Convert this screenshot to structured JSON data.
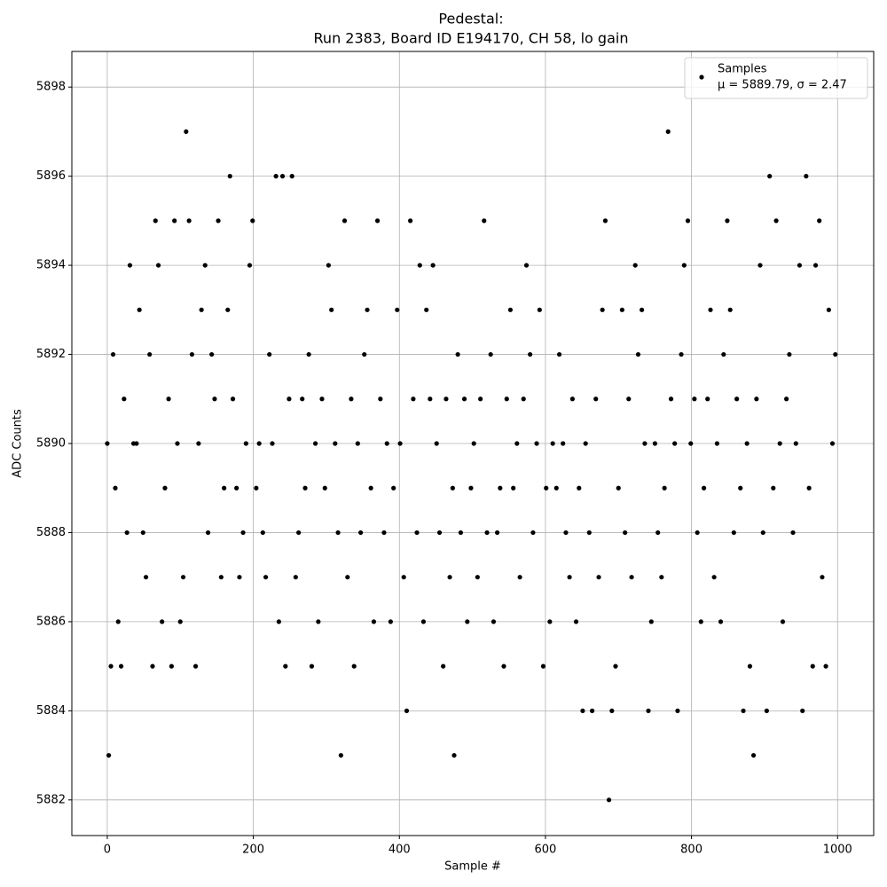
{
  "chart_data": {
    "type": "scatter",
    "title": "Pedestal:",
    "subtitle": "Run 2383, Board ID E194170, CH 58, lo gain",
    "x_label": "Sample #",
    "y_label": "ADC Counts",
    "stats_label": "μ = 5889.79, σ = 2.47",
    "xlim": [
      -48.5,
      1049.5
    ],
    "ylim": [
      5881.2,
      5898.8
    ],
    "xticks": [
      0,
      200,
      400,
      600,
      800,
      1000
    ],
    "yticks": [
      5882,
      5884,
      5886,
      5888,
      5890,
      5892,
      5894,
      5896,
      5898
    ],
    "grid": true,
    "legend_position": "upper right",
    "x": [
      0,
      2,
      5,
      8,
      11,
      15,
      19,
      23,
      27,
      31,
      36,
      40,
      44,
      49,
      53,
      58,
      62,
      66,
      70,
      75,
      79,
      84,
      88,
      92,
      96,
      100,
      104,
      108,
      112,
      116,
      121,
      125,
      129,
      134,
      138,
      143,
      147,
      152,
      156,
      160,
      165,
      168,
      172,
      177,
      181,
      186,
      190,
      195,
      199,
      204,
      208,
      213,
      217,
      222,
      226,
      231,
      235,
      240,
      244,
      249,
      253,
      258,
      262,
      267,
      271,
      276,
      280,
      285,
      289,
      294,
      298,
      303,
      307,
      312,
      316,
      320,
      325,
      329,
      334,
      338,
      343,
      347,
      352,
      356,
      361,
      365,
      370,
      374,
      379,
      383,
      388,
      392,
      397,
      401,
      406,
      410,
      415,
      419,
      424,
      428,
      433,
      437,
      442,
      446,
      451,
      455,
      460,
      464,
      469,
      473,
      475,
      480,
      484,
      489,
      493,
      498,
      502,
      507,
      511,
      516,
      520,
      525,
      529,
      534,
      538,
      543,
      547,
      552,
      556,
      561,
      565,
      570,
      574,
      579,
      583,
      588,
      592,
      597,
      601,
      606,
      610,
      615,
      619,
      624,
      628,
      633,
      637,
      642,
      646,
      651,
      655,
      660,
      664,
      669,
      673,
      678,
      682,
      687,
      691,
      696,
      700,
      705,
      709,
      714,
      718,
      723,
      727,
      732,
      736,
      741,
      745,
      750,
      754,
      759,
      763,
      768,
      772,
      777,
      781,
      786,
      790,
      795,
      799,
      804,
      808,
      813,
      817,
      822,
      826,
      831,
      835,
      840,
      844,
      849,
      853,
      858,
      862,
      867,
      871,
      876,
      880,
      885,
      889,
      894,
      898,
      903,
      907,
      912,
      916,
      921,
      925,
      930,
      934,
      939,
      943,
      948,
      952,
      957,
      961,
      966,
      970,
      975,
      979,
      984,
      988,
      993,
      997
    ],
    "series": [
      {
        "name": "Samples",
        "color": "#000000",
        "values": [
          5890,
          5883,
          5885,
          5892,
          5889,
          5886,
          5885,
          5891,
          5888,
          5894,
          5890,
          5890,
          5893,
          5888,
          5887,
          5892,
          5885,
          5895,
          5894,
          5886,
          5889,
          5891,
          5885,
          5895,
          5890,
          5886,
          5887,
          5897,
          5895,
          5892,
          5885,
          5890,
          5893,
          5894,
          5888,
          5892,
          5891,
          5895,
          5887,
          5889,
          5893,
          5896,
          5891,
          5889,
          5887,
          5888,
          5890,
          5894,
          5895,
          5889,
          5890,
          5888,
          5887,
          5892,
          5890,
          5896,
          5886,
          5896,
          5885,
          5891,
          5896,
          5887,
          5888,
          5891,
          5889,
          5892,
          5885,
          5890,
          5886,
          5891,
          5889,
          5894,
          5893,
          5890,
          5888,
          5883,
          5895,
          5887,
          5891,
          5885,
          5890,
          5888,
          5892,
          5893,
          5889,
          5886,
          5895,
          5891,
          5888,
          5890,
          5886,
          5889,
          5893,
          5890,
          5887,
          5884,
          5895,
          5891,
          5888,
          5894,
          5886,
          5893,
          5891,
          5894,
          5890,
          5888,
          5885,
          5891,
          5887,
          5889,
          5883,
          5892,
          5888,
          5891,
          5886,
          5889,
          5890,
          5887,
          5891,
          5895,
          5888,
          5892,
          5886,
          5888,
          5889,
          5885,
          5891,
          5893,
          5889,
          5890,
          5887,
          5891,
          5894,
          5892,
          5888,
          5890,
          5893,
          5885,
          5889,
          5886,
          5890,
          5889,
          5892,
          5890,
          5888,
          5887,
          5891,
          5886,
          5889,
          5884,
          5890,
          5888,
          5884,
          5891,
          5887,
          5893,
          5895,
          5882,
          5884,
          5885,
          5889,
          5893,
          5888,
          5891,
          5887,
          5894,
          5892,
          5893,
          5890,
          5884,
          5886,
          5890,
          5888,
          5887,
          5889,
          5897,
          5891,
          5890,
          5884,
          5892,
          5894,
          5895,
          5890,
          5891,
          5888,
          5886,
          5889,
          5891,
          5893,
          5887,
          5890,
          5886,
          5892,
          5895,
          5893,
          5888,
          5891,
          5889,
          5884,
          5890,
          5885,
          5883,
          5891,
          5894,
          5888,
          5884,
          5896,
          5889,
          5895,
          5890,
          5886,
          5891,
          5892,
          5888,
          5890,
          5894,
          5884,
          5896,
          5889,
          5885,
          5894,
          5895,
          5887,
          5885,
          5893,
          5890,
          5892
        ]
      }
    ]
  }
}
